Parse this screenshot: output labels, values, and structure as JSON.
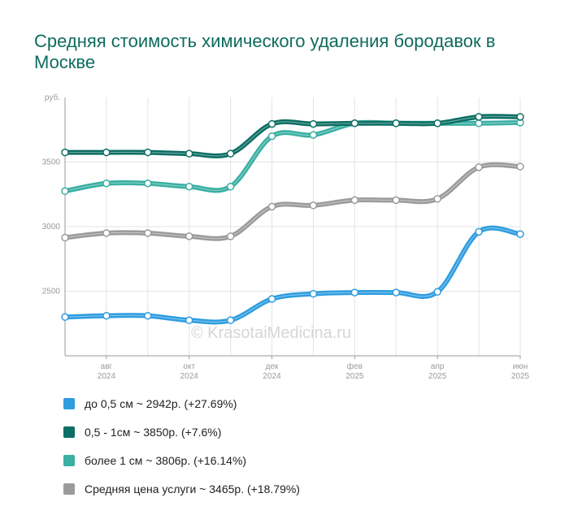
{
  "title": "Средняя стоимость химического удаления бородавок в Москве",
  "watermark": "© KrasotaiMedicina.ru",
  "chart_data": {
    "type": "line",
    "ylabel": "руб.",
    "ylim": [
      2000,
      4000
    ],
    "yticks": [
      2500,
      3000,
      3500
    ],
    "x": [
      "2024-07",
      "2024-08",
      "2024-09",
      "2024-10",
      "2024-11",
      "2024-12",
      "2025-01",
      "2025-02",
      "2025-03",
      "2025-04",
      "2025-05",
      "2025-06"
    ],
    "xtick_labels": [
      {
        "x": "2024-08",
        "month": "авг",
        "year": "2024"
      },
      {
        "x": "2024-10",
        "month": "окт",
        "year": "2024"
      },
      {
        "x": "2024-12",
        "month": "дек",
        "year": "2024"
      },
      {
        "x": "2025-02",
        "month": "фев",
        "year": "2025"
      },
      {
        "x": "2025-04",
        "month": "апр",
        "year": "2025"
      },
      {
        "x": "2025-06",
        "month": "июн",
        "year": "2025"
      }
    ],
    "grid": true,
    "legend_position": "bottom",
    "series": [
      {
        "name": "до 0,5 см",
        "legend": "до 0,5 см ~ 2942р. (+27.69%)",
        "color": "#2e9de0",
        "values": [
          2300,
          2310,
          2310,
          2275,
          2275,
          2440,
          2480,
          2490,
          2490,
          2495,
          2960,
          2942
        ]
      },
      {
        "name": "0,5 - 1см",
        "legend": "0,5 - 1см ~ 3850р. (+7.6%)",
        "color": "#0d6e63",
        "values": [
          3575,
          3575,
          3575,
          3565,
          3565,
          3795,
          3795,
          3800,
          3800,
          3800,
          3850,
          3850
        ]
      },
      {
        "name": "более 1 см",
        "legend": "более 1 см ~ 3806р. (+16.14%)",
        "color": "#3aafa3",
        "values": [
          3275,
          3335,
          3335,
          3310,
          3310,
          3700,
          3710,
          3800,
          3800,
          3800,
          3800,
          3806
        ]
      },
      {
        "name": "Средняя цена услуги",
        "legend": "Средняя цена услуги ~ 3465р. (+18.79%)",
        "color": "#9b9b9b",
        "values": [
          2915,
          2950,
          2950,
          2925,
          2925,
          3155,
          3165,
          3205,
          3205,
          3215,
          3460,
          3465
        ]
      }
    ]
  }
}
